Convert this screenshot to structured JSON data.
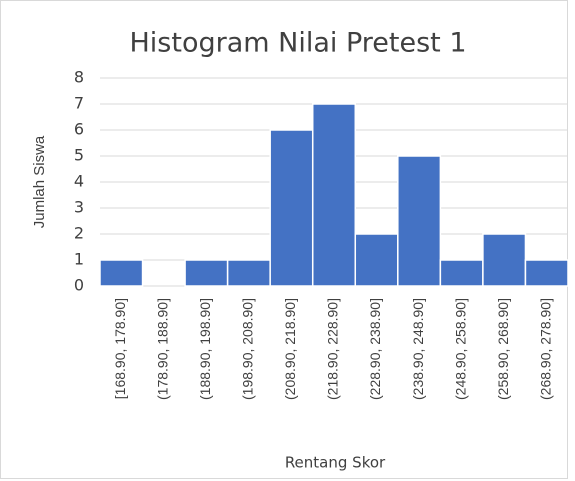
{
  "chart_data": {
    "type": "bar",
    "title": "Histogram Nilai Pretest 1",
    "x_label": "Rentang Skor",
    "y_label": "Jumlah Siswa",
    "categories": [
      "[168.90, 178.90]",
      "(178.90, 188.90]",
      "(188.90, 198.90]",
      "(198.90, 208.90]",
      "(208.90, 218.90]",
      "(218.90, 228.90]",
      "(228.90, 238.90]",
      "(238.90, 248.90]",
      "(248.90, 258.90]",
      "(258.90, 268.90]",
      "(268.90, 278.90]"
    ],
    "values": [
      1,
      0,
      1,
      1,
      6,
      7,
      2,
      5,
      1,
      2,
      1
    ],
    "color": "#4472c4",
    "ylim": [
      0,
      8
    ],
    "yticks": [
      0,
      1,
      2,
      3,
      4,
      5,
      6,
      7,
      8
    ],
    "grid": true
  }
}
